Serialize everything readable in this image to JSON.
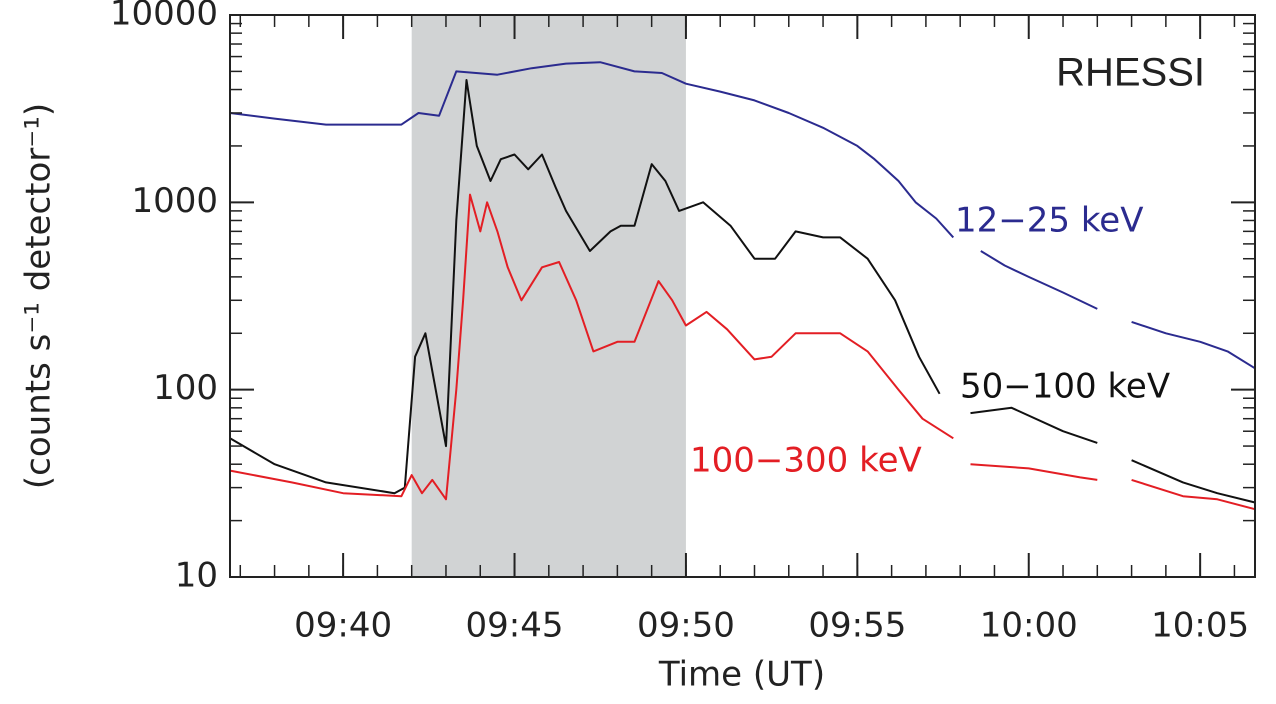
{
  "chart_data": {
    "type": "line",
    "annotation": "RHESSI",
    "x_label": "Time (UT)",
    "y_label": "(counts s⁻¹ detector⁻¹)",
    "log_y": true,
    "xlim": [
      36.7,
      66.6
    ],
    "ylim": [
      10,
      10000
    ],
    "xticks": [
      {
        "value": 40,
        "label": "09:40"
      },
      {
        "value": 45,
        "label": "09:45"
      },
      {
        "value": 50,
        "label": "09:50"
      },
      {
        "value": 55,
        "label": "09:55"
      },
      {
        "value": 60,
        "label": "10:00"
      },
      {
        "value": 65,
        "label": "10:05"
      }
    ],
    "yticks": [
      10,
      100,
      1000,
      10000
    ],
    "shaded_interval": [
      42,
      50
    ],
    "shade_color": "#d1d3d4",
    "series": [
      {
        "name": "12−25 keV",
        "color": "#2b2b8f",
        "x": [
          36.7,
          38,
          39.5,
          41.7,
          42.2,
          42.8,
          43.3,
          44.5,
          45.5,
          46.5,
          47.5,
          48.5,
          49.3,
          50,
          51,
          52,
          53,
          54,
          55,
          55.5,
          56.2,
          56.7,
          57.3,
          57.8,
          58.2,
          58.6,
          59.3,
          60,
          61,
          62,
          62.5,
          63,
          64,
          65,
          65.8,
          66.6
        ],
        "values": [
          3000,
          2800,
          2600,
          2600,
          3000,
          2900,
          5000,
          4800,
          5200,
          5500,
          5600,
          5000,
          4900,
          4300,
          3900,
          3500,
          3000,
          2500,
          2000,
          1700,
          1300,
          1000,
          820,
          650,
          null,
          550,
          460,
          400,
          330,
          270,
          null,
          230,
          200,
          180,
          160,
          130
        ]
      },
      {
        "name": "50−100 keV",
        "color": "#111111",
        "x": [
          36.7,
          38,
          39.5,
          41.5,
          41.8,
          42.1,
          42.4,
          42.7,
          43,
          43.3,
          43.6,
          43.9,
          44.3,
          44.6,
          45,
          45.4,
          45.8,
          46.2,
          46.5,
          47.2,
          47.8,
          48.1,
          48.5,
          49,
          49.4,
          49.8,
          50.5,
          51.3,
          52,
          52.6,
          53.2,
          54,
          54.5,
          55.3,
          56.1,
          56.8,
          57.4,
          57.9,
          58.3,
          59.5,
          61,
          62,
          62.5,
          63,
          64.5,
          65.5,
          66.6
        ],
        "values": [
          55,
          40,
          32,
          28,
          30,
          150,
          200,
          100,
          50,
          800,
          4500,
          2000,
          1300,
          1700,
          1800,
          1500,
          1800,
          1200,
          900,
          550,
          700,
          750,
          750,
          1600,
          1300,
          900,
          1000,
          750,
          500,
          500,
          700,
          650,
          650,
          500,
          300,
          150,
          95,
          null,
          75,
          80,
          60,
          52,
          null,
          42,
          32,
          28,
          25
        ]
      },
      {
        "name": "100−300 keV",
        "color": "#e31e24",
        "x": [
          36.7,
          38.5,
          40,
          41.7,
          42,
          42.3,
          42.6,
          43,
          43.3,
          43.5,
          43.7,
          44,
          44.2,
          44.5,
          44.8,
          45.2,
          45.8,
          46.3,
          46.8,
          47.3,
          48,
          48.5,
          49.2,
          49.6,
          50,
          50.6,
          51.2,
          52,
          52.5,
          53.2,
          54.5,
          55.3,
          56.2,
          56.9,
          57.8,
          58,
          58.3,
          60,
          61.5,
          62,
          62.5,
          63,
          64.5,
          65.5,
          66.6
        ],
        "values": [
          37,
          32,
          28,
          27,
          35,
          28,
          33,
          26,
          100,
          300,
          1100,
          700,
          1000,
          700,
          450,
          300,
          450,
          480,
          300,
          160,
          180,
          180,
          380,
          300,
          220,
          260,
          210,
          145,
          150,
          200,
          200,
          160,
          100,
          70,
          55,
          null,
          40,
          38,
          34,
          33,
          null,
          33,
          27,
          26,
          23
        ]
      }
    ]
  }
}
